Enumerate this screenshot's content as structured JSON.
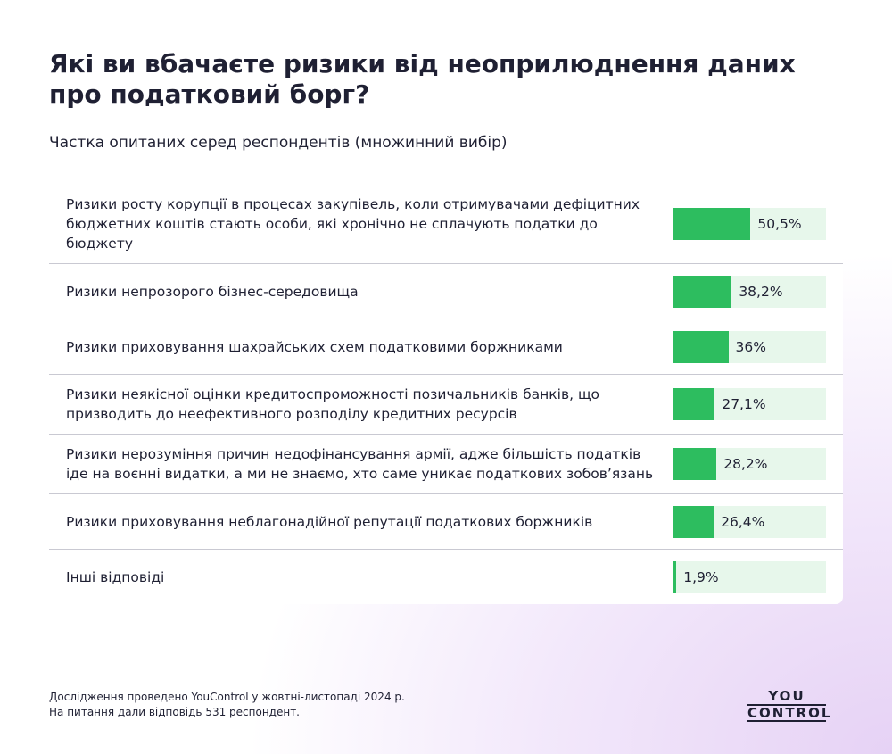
{
  "chart_data": {
    "type": "bar",
    "title": "Які ви вбачаєте ризики від неоприлюднення даних про податковий борг?",
    "subtitle": "Частка опитаних серед респондентів (множинний вибір)",
    "categories": [
      "Ризики росту корупції в процесах закупівель, коли отримувачами дефіцитних бюджетних коштів стають особи, які хронічно не сплачують податки до бюджету",
      "Ризики непрозорого бізнес-середовища",
      "Ризики приховування шахрайських схем податковими боржниками",
      "Ризики неякісної оцінки кредитоспроможності позичальників банків, що призводить до неефективного розподілу кредитних ресурсів",
      "Ризики нерозуміння причин недофінансування армії, адже більшість податків іде на воєнні видатки, а ми не знаємо, хто саме уникає податкових зобов’язань",
      "Ризики приховування неблагонадійної репутації податкових боржників",
      "Інші відповіді"
    ],
    "values": [
      50.5,
      38.2,
      36,
      27.1,
      28.2,
      26.4,
      1.9
    ],
    "value_labels": [
      "50,5%",
      "38,2%",
      "36%",
      "27,1%",
      "28,2%",
      "26,4%",
      "1,9%"
    ],
    "color": "#2dbd5f",
    "track_color": "#e7f7eb",
    "xlim": [
      0,
      100
    ]
  },
  "footer": {
    "notes": [
      "Дослідження проведено YouControl у жовтні-листопаді 2024 р.",
      "На питання дали відповідь 531 респондент."
    ],
    "logo": [
      "YOU",
      "CONTROL"
    ]
  }
}
